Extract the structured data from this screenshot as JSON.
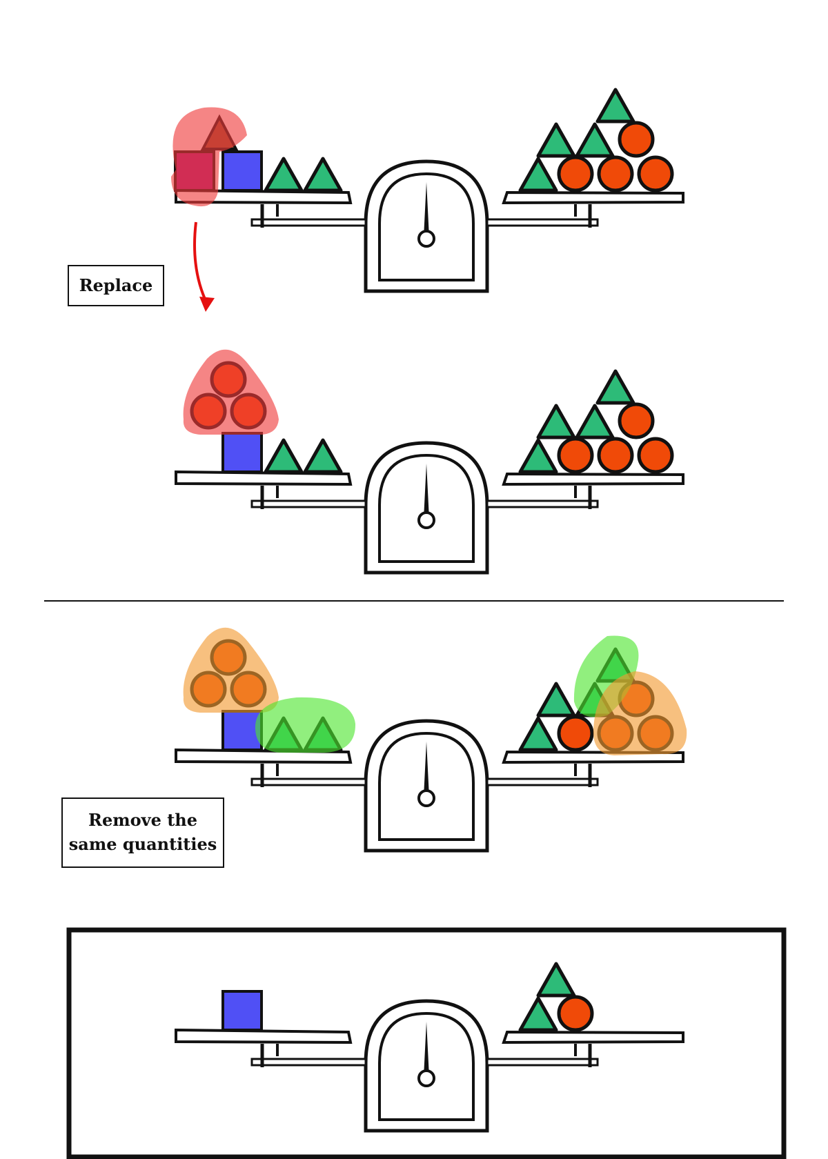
{
  "labels": {
    "replace": "Replace",
    "remove_line1": "Remove the",
    "remove_line2": "same quantities"
  },
  "colors": {
    "square": "#5050f5",
    "triangle": "#2dbb78",
    "circle": "#f04a08",
    "highlight_red": "#ef3a3a",
    "highlight_orange": "#f29a30",
    "highlight_green": "#4de52e",
    "arrow": "#e51010",
    "outline": "#111111"
  },
  "scales": [
    {
      "id": "original",
      "highlighted": true,
      "left": [
        "square-highlighted",
        "triangle-highlighted",
        "square",
        "triangle",
        "triangle"
      ],
      "right": [
        "triangle",
        "triangle",
        "triangle",
        "triangle",
        "circle",
        "circle",
        "circle",
        "circle"
      ]
    },
    {
      "id": "replaced",
      "left": [
        "circle",
        "circle",
        "circle",
        "square",
        "triangle",
        "triangle"
      ],
      "right": [
        "triangle",
        "triangle",
        "triangle",
        "triangle",
        "circle",
        "circle",
        "circle",
        "circle"
      ]
    },
    {
      "id": "remove-same",
      "left": [
        "circle",
        "circle",
        "circle",
        "square",
        "triangle",
        "triangle"
      ],
      "right": [
        "triangle",
        "triangle",
        "triangle",
        "triangle",
        "circle",
        "circle",
        "circle",
        "circle"
      ]
    },
    {
      "id": "result",
      "boxed": true,
      "left": [
        "square"
      ],
      "right": [
        "triangle",
        "triangle",
        "circle"
      ]
    }
  ]
}
